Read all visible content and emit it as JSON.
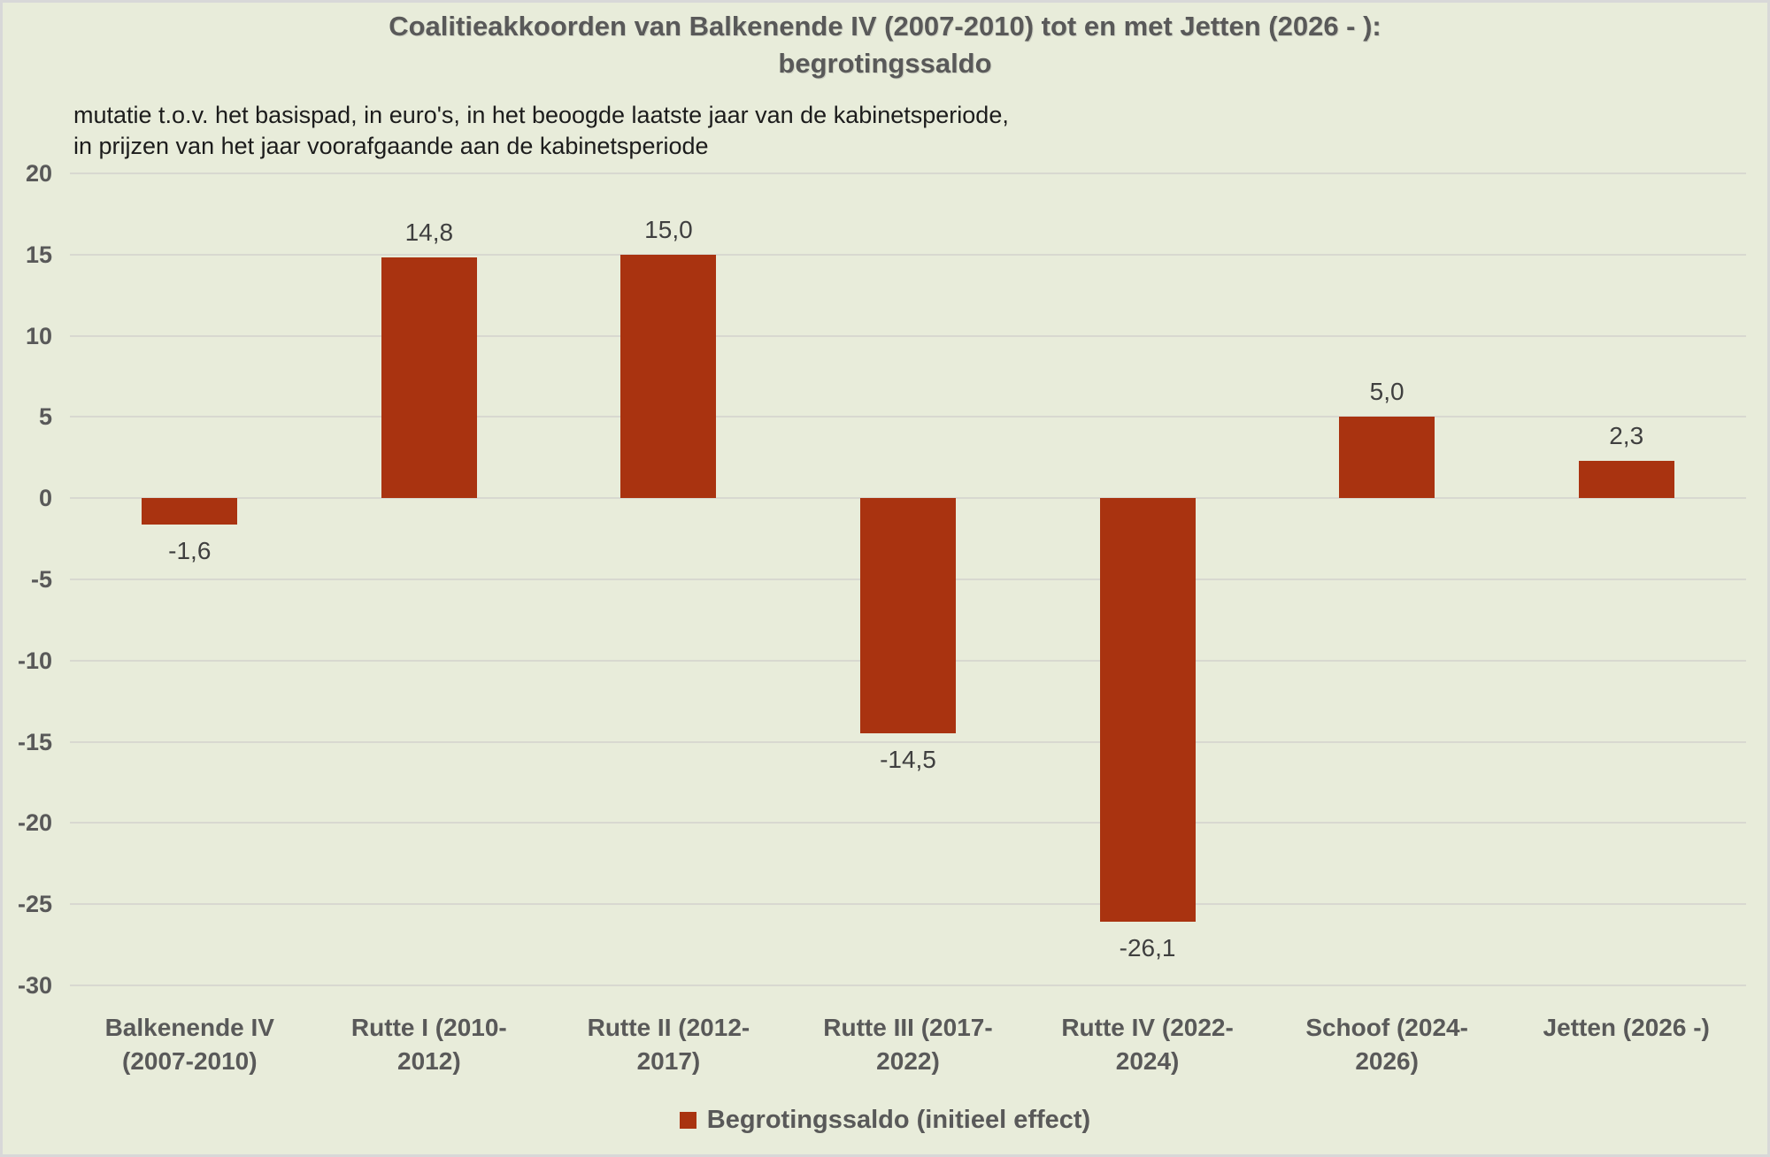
{
  "canvas": {
    "background_color": "#E8ECDA",
    "border_color": "#D8D8D8"
  },
  "title": {
    "line1": "Coalitieakkoorden van Balkenende IV (2007-2010) tot en met Jetten (2026 - ):",
    "line2": "begrotingssaldo",
    "color": "#595959"
  },
  "subtitle": {
    "line1": "mutatie t.o.v. het basispad, in euro's, in het beoogde laatste jaar van de kabinetsperiode,",
    "line2": "in prijzen van het jaar voorafgaande aan de kabinetsperiode",
    "color": "#1C1C1C"
  },
  "chart_data": {
    "type": "bar",
    "title": "Coalitieakkoorden van Balkenende IV (2007-2010) tot en met Jetten (2026 - ): begrotingssaldo",
    "subtitle": "mutatie t.o.v. het basispad, in euro's, in het beoogde laatste jaar van de kabinetsperiode, in prijzen van het jaar voorafgaande aan de kabinetsperiode",
    "categories": [
      "Balkenende IV (2007-2010)",
      "Rutte I (2010-2012)",
      "Rutte II (2012-2017)",
      "Rutte III (2017-2022)",
      "Rutte IV (2022-2024)",
      "Schoof (2024-2026)",
      "Jetten (2026 -)"
    ],
    "category_lines": [
      [
        "Balkenende IV",
        "(2007-2010)"
      ],
      [
        "Rutte I  (2010-",
        "2012)"
      ],
      [
        "Rutte II  (2012-",
        "2017)"
      ],
      [
        "Rutte III  (2017-",
        "2022)"
      ],
      [
        "Rutte IV  (2022-",
        "2024)"
      ],
      [
        "Schoof  (2024-",
        "2026)"
      ],
      [
        "Jetten  (2026 -)"
      ]
    ],
    "series": [
      {
        "name": "Begrotingssaldo (initieel effect)",
        "values": [
          -1.6,
          14.8,
          15.0,
          -14.5,
          -26.1,
          5.0,
          2.3
        ],
        "value_labels": [
          "-1,6",
          "14,8",
          "15,0",
          "-14,5",
          "-26,1",
          "5,0",
          "2,3"
        ],
        "color": "#A93310"
      }
    ],
    "xlabel": "",
    "ylabel": "",
    "ylim": [
      -30,
      20
    ],
    "yticks": [
      20,
      15,
      10,
      5,
      0,
      -5,
      -10,
      -15,
      -20,
      -25,
      -30
    ],
    "grid": true,
    "gridline_color": "#D8D8D0",
    "legend_position": "bottom"
  },
  "legend": {
    "label": "Begrotingssaldo (initieel effect)",
    "swatch_color": "#A93310"
  },
  "colors": {
    "bar": "#A93310",
    "axis_text": "#595959",
    "data_label_text": "#3F3F3F"
  }
}
